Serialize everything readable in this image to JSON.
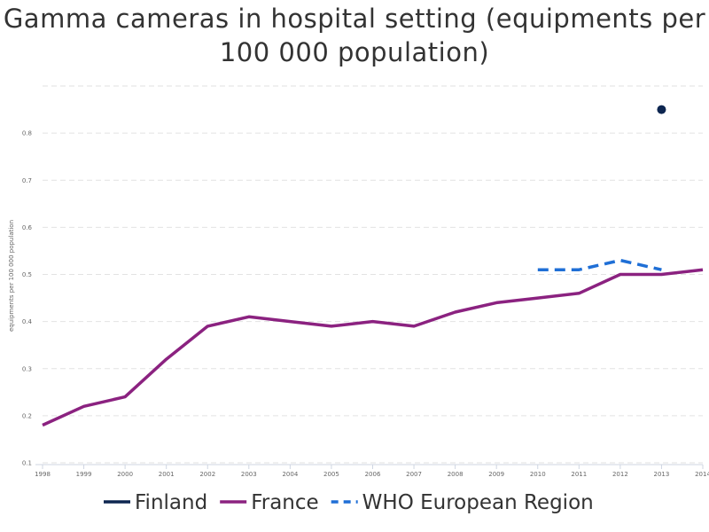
{
  "chart_data": {
    "type": "line",
    "title_line1": "Gamma cameras in hospital setting (equipments per",
    "title_line2": "100 000 population)",
    "ylabel": "equipments per 100 000 population",
    "xlabel": "",
    "categories": [
      "1998",
      "1999",
      "2000",
      "2001",
      "2002",
      "2003",
      "2004",
      "2005",
      "2006",
      "2007",
      "2008",
      "2009",
      "2010",
      "2011",
      "2012",
      "2013",
      "2014"
    ],
    "y_ticks": [
      0.1,
      0.2,
      0.3,
      0.4,
      0.5,
      0.6,
      0.7,
      0.8
    ],
    "y_tick_labels": [
      "0.1",
      "0.2",
      "0.3",
      "0.4",
      "0.5",
      "0.6",
      "0.7",
      "0.8"
    ],
    "ylim": [
      0.1,
      0.9
    ],
    "grid": true,
    "legend_position": "bottom",
    "series": [
      {
        "name": "Finland",
        "color": "#0d2650",
        "style": "solid",
        "values": [
          null,
          null,
          null,
          null,
          null,
          null,
          null,
          null,
          null,
          null,
          null,
          null,
          null,
          null,
          null,
          0.85,
          null
        ]
      },
      {
        "name": "France",
        "color": "#8b2280",
        "style": "solid",
        "values": [
          0.18,
          0.22,
          0.24,
          0.32,
          0.39,
          0.41,
          0.4,
          0.39,
          0.4,
          0.39,
          0.42,
          0.44,
          0.45,
          0.46,
          0.5,
          0.5,
          0.51
        ]
      },
      {
        "name": "WHO European Region",
        "color": "#1f6fd6",
        "style": "dashed",
        "values": [
          null,
          null,
          null,
          null,
          null,
          null,
          null,
          null,
          null,
          null,
          null,
          null,
          0.51,
          0.51,
          0.53,
          0.51,
          null
        ]
      }
    ]
  }
}
